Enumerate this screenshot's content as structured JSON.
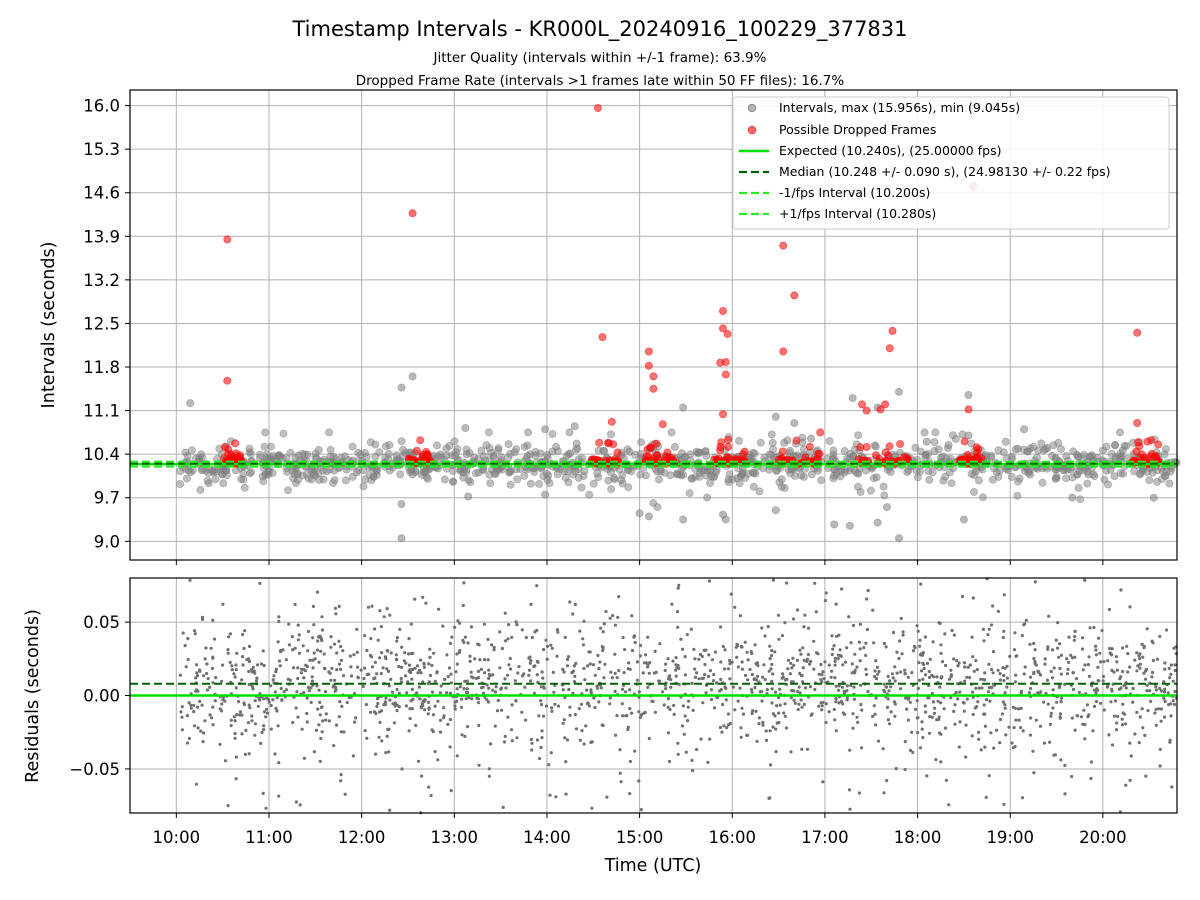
{
  "chart_data": [
    {
      "type": "scatter",
      "title": "Timestamp Intervals - KR000L_20240916_100229_377831",
      "subtitle_lines": [
        "Jitter Quality (intervals within +/-1 frame): 63.9%",
        "Dropped Frame Rate (intervals >1 frames late within 50 FF files): 16.7%"
      ],
      "xlabel": "",
      "ylabel": "Intervals (seconds)",
      "x_unit": "hours UTC",
      "xlim": [
        9.5,
        20.8
      ],
      "ylim": [
        8.7,
        16.25
      ],
      "yticks": [
        9.0,
        9.7,
        10.4,
        11.1,
        11.8,
        12.5,
        13.2,
        13.9,
        14.6,
        15.3,
        16.0
      ],
      "ytick_labels": [
        "9.0",
        "9.7",
        "10.4",
        "11.1",
        "11.8",
        "12.5",
        "13.2",
        "13.9",
        "14.6",
        "15.3",
        "16.0"
      ],
      "xticks": [
        10,
        11,
        12,
        13,
        14,
        15,
        16,
        17,
        18,
        19,
        20
      ],
      "grid": true,
      "legend_position": "upper-right",
      "legend": [
        "Intervals, max (15.956s), min (9.045s)",
        "Possible Dropped Frames",
        "Expected (10.240s), (25.00000 fps)",
        "Median (10.248 +/- 0.090 s), (24.98130 +/- 0.22 fps)",
        "-1/fps Interval (10.200s)",
        "+1/fps Interval (10.280s)"
      ],
      "reference_lines": {
        "expected": 10.24,
        "median": 10.248,
        "minus_one_fps": 10.2,
        "plus_one_fps": 10.28
      },
      "series": [
        {
          "name": "Intervals, max (15.956s), min (9.045s)",
          "color": "#808080",
          "x_start": 10.04,
          "x_end": 20.8,
          "count": 1100,
          "baseline": 10.24,
          "max": 15.956,
          "min": 9.045,
          "outliers": [
            [
              10.15,
              11.22
            ],
            [
              12.43,
              11.47
            ],
            [
              12.55,
              11.65
            ],
            [
              12.43,
              9.6
            ],
            [
              12.43,
              9.05
            ],
            [
              13.12,
              10.82
            ],
            [
              13.15,
              9.72
            ],
            [
              13.98,
              10.8
            ],
            [
              13.98,
              9.75
            ],
            [
              14.3,
              10.85
            ],
            [
              15.0,
              9.45
            ],
            [
              15.1,
              9.4
            ],
            [
              15.47,
              11.15
            ],
            [
              15.47,
              9.35
            ],
            [
              15.9,
              9.43
            ],
            [
              15.93,
              9.35
            ],
            [
              16.47,
              11.0
            ],
            [
              16.47,
              9.5
            ],
            [
              16.67,
              10.9
            ],
            [
              16.85,
              10.65
            ],
            [
              17.1,
              9.27
            ],
            [
              17.27,
              9.25
            ],
            [
              17.3,
              11.3
            ],
            [
              17.57,
              11.15
            ],
            [
              17.57,
              9.3
            ],
            [
              17.67,
              9.55
            ],
            [
              17.8,
              9.05
            ],
            [
              17.8,
              11.4
            ],
            [
              18.1,
              10.6
            ],
            [
              18.5,
              9.35
            ],
            [
              18.55,
              11.35
            ],
            [
              18.55,
              10.7
            ],
            [
              19.15,
              10.8
            ],
            [
              19.4,
              10.5
            ],
            [
              19.67,
              9.7
            ],
            [
              20.55,
              9.7
            ]
          ]
        },
        {
          "name": "Possible Dropped Frames",
          "color": "#ff0000",
          "points": [
            [
              10.55,
              13.85
            ],
            [
              10.55,
              11.58
            ],
            [
              12.55,
              14.27
            ],
            [
              14.55,
              15.96
            ],
            [
              14.6,
              12.28
            ],
            [
              14.7,
              10.92
            ],
            [
              15.1,
              12.05
            ],
            [
              15.1,
              11.82
            ],
            [
              15.15,
              11.65
            ],
            [
              15.15,
              11.45
            ],
            [
              15.25,
              10.88
            ],
            [
              15.9,
              12.7
            ],
            [
              15.9,
              12.42
            ],
            [
              15.95,
              12.33
            ],
            [
              15.87,
              11.87
            ],
            [
              15.93,
              11.88
            ],
            [
              15.93,
              11.68
            ],
            [
              15.9,
              11.04
            ],
            [
              16.55,
              13.75
            ],
            [
              16.55,
              12.05
            ],
            [
              16.67,
              12.95
            ],
            [
              16.95,
              10.75
            ],
            [
              17.4,
              11.2
            ],
            [
              17.45,
              11.1
            ],
            [
              17.6,
              11.12
            ],
            [
              17.65,
              11.2
            ],
            [
              17.7,
              12.1
            ],
            [
              17.73,
              12.38
            ],
            [
              18.55,
              11.12
            ],
            [
              18.6,
              14.7
            ],
            [
              20.37,
              12.35
            ],
            [
              20.37,
              10.9
            ],
            [
              20.48,
              10.6
            ]
          ],
          "clusters": [
            [
              10.5,
              10.7
            ],
            [
              12.5,
              12.75
            ],
            [
              14.48,
              14.8
            ],
            [
              15.05,
              15.4
            ],
            [
              15.8,
              16.15
            ],
            [
              16.5,
              16.95
            ],
            [
              17.35,
              17.9
            ],
            [
              18.45,
              18.7
            ],
            [
              20.3,
              20.6
            ]
          ]
        }
      ]
    },
    {
      "type": "scatter",
      "xlabel": "Time (UTC)",
      "ylabel": "Residuals (seconds)",
      "x_unit": "hours UTC",
      "xlim": [
        9.5,
        20.8
      ],
      "ylim": [
        -0.08,
        0.08
      ],
      "yticks": [
        -0.05,
        0.0,
        0.05
      ],
      "ytick_labels": [
        "−0.05",
        "0.00",
        "0.05"
      ],
      "xticks": [
        10,
        11,
        12,
        13,
        14,
        15,
        16,
        17,
        18,
        19,
        20
      ],
      "xtick_labels": [
        "10:00",
        "11:00",
        "12:00",
        "13:00",
        "14:00",
        "15:00",
        "16:00",
        "17:00",
        "18:00",
        "19:00",
        "20:00"
      ],
      "grid": true,
      "reference_lines": {
        "zero": 0.0,
        "median_offset": 0.008
      },
      "series": [
        {
          "color": "#707070",
          "x_start": 10.04,
          "x_end": 20.8,
          "count": 1900,
          "center": 0.008,
          "spread": 0.02
        }
      ],
      "colors": {
        "expected": "#00e000",
        "median": "#006400",
        "fps_bounds": "#22ee22",
        "grid": "#b0b0b0"
      }
    }
  ]
}
